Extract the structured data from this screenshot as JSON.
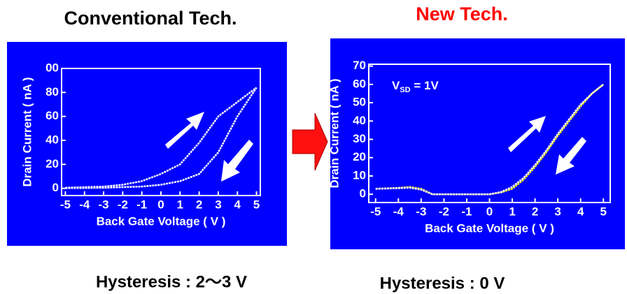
{
  "chart_data": [
    {
      "type": "line",
      "title": "Conventional Tech.",
      "title_color": "#000000",
      "x_label": "Back Gate Voltage ( V )",
      "y_label": "Drain Current ( nA )",
      "caption": "Hysteresis :  2～3 V",
      "x": [
        -5,
        -4,
        -3,
        -2,
        -1,
        0,
        1,
        2,
        3,
        4,
        5
      ],
      "series": [
        {
          "name": "forward",
          "color": "#ffffff",
          "values": [
            0.5,
            1,
            1.5,
            3,
            6,
            12,
            20,
            38,
            60,
            72,
            84
          ]
        },
        {
          "name": "reverse",
          "color": "#ffffff",
          "values": [
            0.2,
            0.3,
            0.5,
            1,
            1.5,
            3,
            6,
            12,
            30,
            60,
            84
          ]
        }
      ],
      "xlim": [
        -5.2,
        5.2
      ],
      "ylim": [
        -6,
        100
      ],
      "xticks": [
        -5,
        -4,
        -3,
        -2,
        -1,
        0,
        1,
        2,
        3,
        4,
        5
      ],
      "yticks": [
        0,
        20,
        40,
        60,
        80,
        {
          "value": 100,
          "label": "00"
        }
      ]
    },
    {
      "type": "line",
      "title": "New Tech.",
      "title_color": "#ff0000",
      "x_label": "Back Gate Voltage ( V )",
      "y_label": "Drain Current ( nA )",
      "caption": "Hysteresis : 0 V",
      "annotation": [
        "V",
        "SD",
        " = 1V"
      ],
      "x": [
        -5,
        -4,
        -3.5,
        -3,
        -2.5,
        -2,
        -1,
        0,
        0.5,
        1,
        1.5,
        2,
        2.5,
        3,
        3.5,
        4,
        4.5,
        5
      ],
      "series": [
        {
          "name": "forward",
          "color": "#ffff00",
          "values": [
            3,
            3.5,
            4,
            3,
            0,
            0,
            0,
            0,
            1,
            3,
            8,
            15,
            23,
            32,
            40,
            48,
            55,
            60
          ]
        },
        {
          "name": "reverse",
          "color": "#ffffff",
          "values": [
            3,
            3.3,
            3.6,
            2.5,
            0,
            0,
            0,
            0,
            1.2,
            4,
            9,
            16,
            24,
            33,
            41,
            49,
            55,
            60
          ]
        }
      ],
      "xlim": [
        -5.3,
        5.3
      ],
      "ylim": [
        -4.5,
        71
      ],
      "xticks": [
        -5,
        -4,
        -3,
        -2,
        -1,
        0,
        1,
        2,
        3,
        4,
        5
      ],
      "yticks": [
        0,
        10,
        20,
        30,
        40,
        50,
        60,
        70
      ]
    }
  ]
}
